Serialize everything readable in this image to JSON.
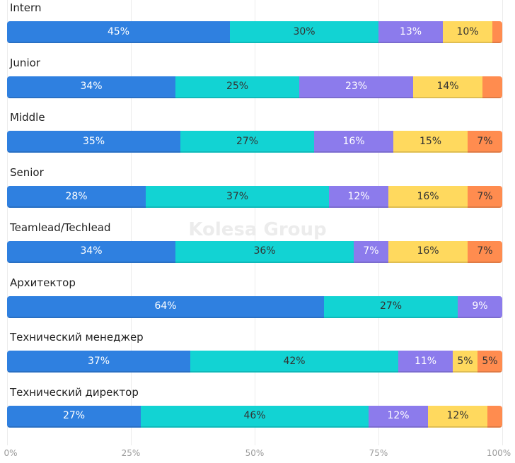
{
  "chart_data": {
    "type": "bar",
    "orientation": "horizontal-stacked-100",
    "watermark": "Kolesa Group",
    "categories": [
      "Intern",
      "Junior",
      "Middle",
      "Senior",
      "Teamlead/Techlead",
      "Архитектор",
      "Технический менеджер",
      "Технический директор"
    ],
    "series": [
      {
        "name": "s1",
        "color": "#2f80e0",
        "text": "#ffffff",
        "values": [
          45,
          34,
          35,
          28,
          34,
          64,
          37,
          27
        ]
      },
      {
        "name": "s2",
        "color": "#12d3d3",
        "text": "#333333",
        "values": [
          30,
          25,
          27,
          37,
          36,
          27,
          42,
          46
        ]
      },
      {
        "name": "s3",
        "color": "#8c7bec",
        "text": "#ffffff",
        "values": [
          13,
          23,
          16,
          12,
          7,
          9,
          11,
          12
        ]
      },
      {
        "name": "s4",
        "color": "#ffd95e",
        "text": "#333333",
        "values": [
          10,
          14,
          15,
          16,
          16,
          0,
          5,
          12
        ]
      },
      {
        "name": "s5",
        "color": "#ff8c4f",
        "text": "#333333",
        "values": [
          2,
          4,
          7,
          7,
          7,
          0,
          5,
          3
        ]
      }
    ],
    "xlim": [
      0,
      100
    ],
    "xticks": [
      "0%",
      "25%",
      "50%",
      "75%",
      "100%"
    ],
    "label_min": 5
  }
}
